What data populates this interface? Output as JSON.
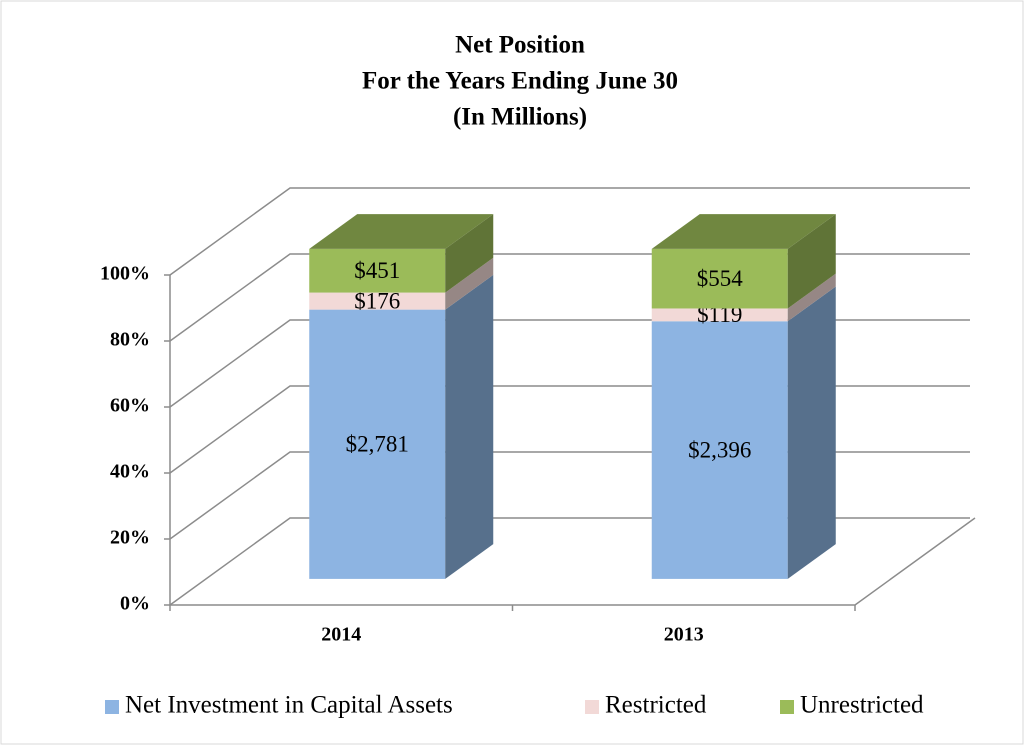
{
  "chart_data": {
    "type": "bar",
    "stacking": "percent",
    "title": [
      "Net Position",
      "For the Years Ending June 30",
      "(In Millions)"
    ],
    "categories": [
      "2014",
      "2013"
    ],
    "series": [
      {
        "name": "Net Investment in Capital Assets",
        "color": "#8db4e2",
        "values": [
          2781,
          2396
        ],
        "value_labels": [
          "$2,781",
          "$2,396"
        ]
      },
      {
        "name": "Restricted",
        "color": "#f2d9d7",
        "values": [
          176,
          119
        ],
        "value_labels": [
          "$176",
          "$119"
        ]
      },
      {
        "name": "Unrestricted",
        "color": "#9bbb59",
        "values": [
          451,
          554
        ],
        "value_labels": [
          "$451",
          "$554"
        ]
      }
    ],
    "ylim": [
      0,
      100
    ],
    "yticks": [
      {
        "value": 0,
        "label": "0%"
      },
      {
        "value": 20,
        "label": "20%"
      },
      {
        "value": 40,
        "label": "40%"
      },
      {
        "value": 60,
        "label": "60%"
      },
      {
        "value": 80,
        "label": "80%"
      },
      {
        "value": 100,
        "label": "100%"
      }
    ],
    "grid": true,
    "legend": "bottom"
  }
}
